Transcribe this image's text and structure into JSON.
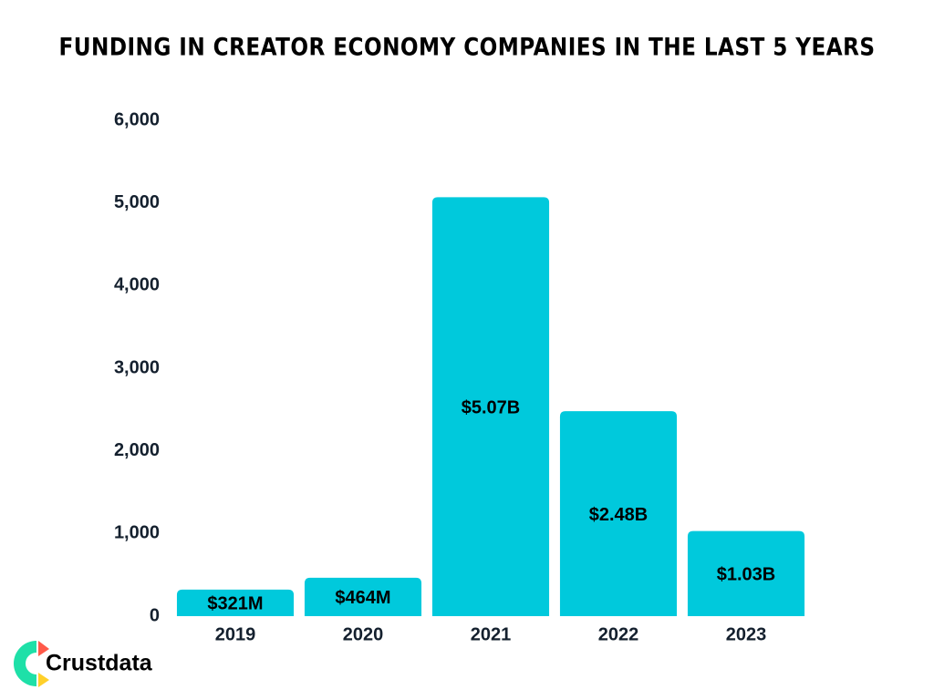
{
  "chart_data": {
    "type": "bar",
    "title": "FUNDING IN CREATOR ECONOMY COMPANIES IN THE LAST 5 YEARS",
    "categories": [
      "2019",
      "2020",
      "2021",
      "2022",
      "2023"
    ],
    "values": [
      321,
      464,
      5070,
      2480,
      1030
    ],
    "value_labels": [
      "$321M",
      "$464M",
      "$5.07B",
      "$2.48B",
      "$1.03B"
    ],
    "color": "#00c9dc",
    "ylim": [
      0,
      6000
    ],
    "yticks": [
      0,
      {
        "value": 1000,
        "label": "1,000"
      },
      {
        "value": 2000,
        "label": "2,000"
      },
      {
        "value": 3000,
        "label": "3,000"
      },
      {
        "value": 4000,
        "label": "4,000"
      },
      {
        "value": 5000,
        "label": "5,000"
      },
      {
        "value": 6000,
        "label": "6,000"
      }
    ],
    "grid": false
  },
  "logo": "Crustdata"
}
